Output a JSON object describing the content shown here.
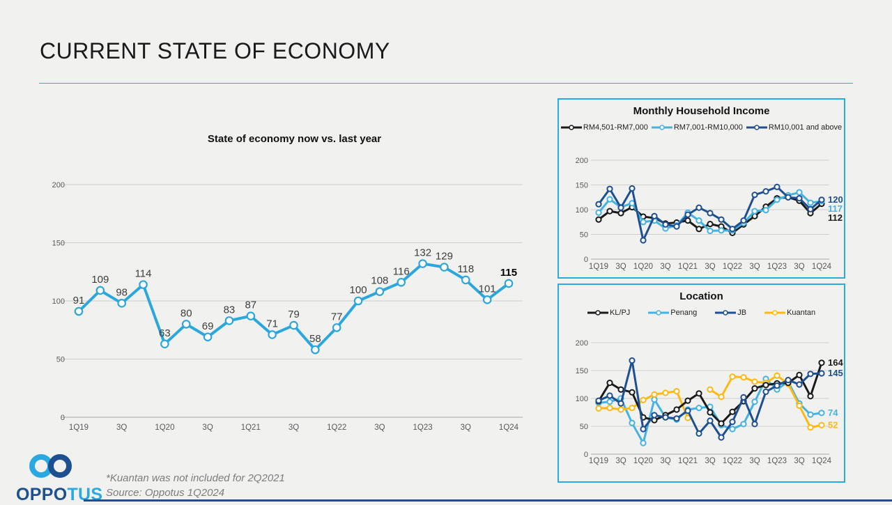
{
  "title": "CURRENT STATE OF ECONOMY",
  "accent_color": "#29abe2",
  "footer": {
    "logo_text_primary": "OPPO",
    "logo_text_secondary": "TUS",
    "footnote_line1": "*Kuantan was not included for 2Q2021",
    "footnote_line2": "Source: Oppotus 1Q2024"
  },
  "chart_data": [
    {
      "id": "economy",
      "type": "line",
      "title": "State of economy now vs. last year",
      "x_labels": [
        "1Q19",
        "3Q",
        "1Q20",
        "3Q",
        "1Q21",
        "3Q",
        "1Q22",
        "3Q",
        "1Q23",
        "3Q",
        "1Q24"
      ],
      "ylim": [
        0,
        200
      ],
      "y_ticks": [
        0,
        50,
        100,
        150,
        200
      ],
      "grid": true,
      "legend_position": "none",
      "show_point_labels": true,
      "series": [
        {
          "name": "State of economy index",
          "color": "#2ba7dc",
          "values": [
            91,
            109,
            98,
            114,
            63,
            80,
            69,
            83,
            87,
            71,
            79,
            58,
            77,
            100,
            108,
            116,
            132,
            129,
            118,
            101,
            115
          ]
        }
      ]
    },
    {
      "id": "income",
      "type": "line",
      "title": "Monthly Household Income",
      "x_labels": [
        "1Q19",
        "3Q",
        "1Q20",
        "3Q",
        "1Q21",
        "3Q",
        "1Q22",
        "3Q",
        "1Q23",
        "3Q",
        "1Q24"
      ],
      "ylim": [
        0,
        200
      ],
      "y_ticks": [
        0,
        50,
        100,
        150,
        200
      ],
      "grid": true,
      "legend_position": "top",
      "show_end_labels": true,
      "series": [
        {
          "name": "RM4,501-RM7,000",
          "color": "#1a1a1a",
          "values": [
            80,
            97,
            93,
            105,
            86,
            83,
            72,
            74,
            78,
            61,
            71,
            66,
            53,
            70,
            87,
            106,
            123,
            125,
            118,
            93,
            112
          ]
        },
        {
          "name": "RM7,001-RM10,000",
          "color": "#44b3e1",
          "values": [
            94,
            121,
            105,
            113,
            75,
            78,
            62,
            68,
            94,
            78,
            57,
            58,
            58,
            73,
            97,
            99,
            120,
            129,
            135,
            114,
            117
          ]
        },
        {
          "name": "RM10,001 and above",
          "color": "#1d4f91",
          "values": [
            111,
            142,
            104,
            143,
            38,
            87,
            70,
            66,
            90,
            104,
            93,
            80,
            61,
            78,
            130,
            137,
            146,
            125,
            123,
            101,
            120
          ]
        }
      ]
    },
    {
      "id": "location",
      "type": "line",
      "title": "Location",
      "x_labels": [
        "1Q19",
        "3Q",
        "1Q20",
        "3Q",
        "1Q21",
        "3Q",
        "1Q22",
        "3Q",
        "1Q23",
        "3Q",
        "1Q24"
      ],
      "ylim": [
        0,
        200
      ],
      "y_ticks": [
        0,
        50,
        100,
        150,
        200
      ],
      "grid": true,
      "legend_position": "top",
      "show_end_labels": true,
      "note": "Kuantan has no data for 2Q2021",
      "series": [
        {
          "name": "KL/PJ",
          "color": "#1a1a1a",
          "values": [
            95,
            128,
            116,
            111,
            66,
            61,
            70,
            80,
            96,
            109,
            75,
            55,
            76,
            95,
            118,
            124,
            127,
            128,
            142,
            104,
            164
          ]
        },
        {
          "name": "Penang",
          "color": "#44b3e1",
          "values": [
            92,
            94,
            100,
            56,
            20,
            98,
            66,
            62,
            80,
            83,
            85,
            52,
            45,
            54,
            94,
            135,
            116,
            130,
            91,
            71,
            74
          ]
        },
        {
          "name": "JB",
          "color": "#1d4f91",
          "values": [
            96,
            105,
            91,
            168,
            45,
            70,
            66,
            64,
            78,
            37,
            60,
            30,
            58,
            102,
            54,
            112,
            123,
            133,
            125,
            144,
            145
          ]
        },
        {
          "name": "Kuantan",
          "color": "#fdb913",
          "values": [
            82,
            83,
            80,
            83,
            97,
            107,
            110,
            113,
            65,
            null,
            116,
            103,
            139,
            138,
            130,
            128,
            141,
            126,
            87,
            48,
            52
          ]
        }
      ]
    }
  ]
}
